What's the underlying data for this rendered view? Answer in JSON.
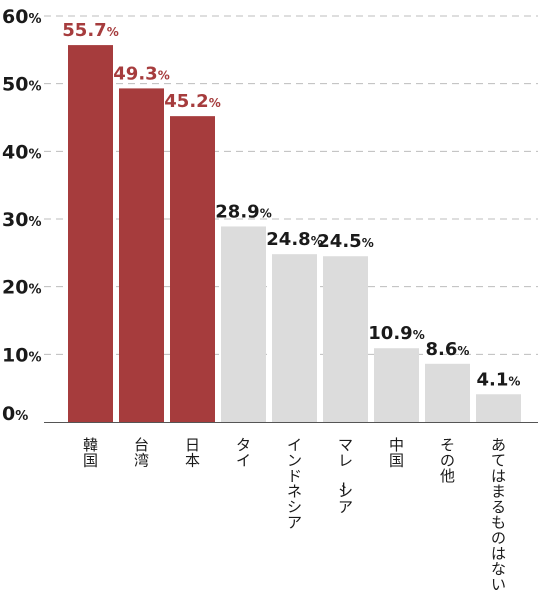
{
  "chart_data": {
    "type": "bar",
    "title": "",
    "xlabel": "",
    "ylabel": "",
    "ylim": [
      0,
      60
    ],
    "yticks": [
      {
        "num": "0",
        "unit": "%"
      },
      {
        "num": "10",
        "unit": "%"
      },
      {
        "num": "20",
        "unit": "%"
      },
      {
        "num": "30",
        "unit": "%"
      },
      {
        "num": "40",
        "unit": "%"
      },
      {
        "num": "50",
        "unit": "%"
      },
      {
        "num": "60",
        "unit": "%"
      }
    ],
    "grid": true,
    "categories": [
      "韓国",
      "台湾",
      "日本",
      "タイ",
      "インドネシア",
      "マレーシア",
      "中国",
      "その他",
      "あてはまるものはない"
    ],
    "values": [
      55.7,
      49.3,
      45.2,
      28.9,
      24.8,
      24.5,
      10.9,
      8.6,
      4.1
    ],
    "value_labels": [
      {
        "num": "55.7",
        "unit": "%"
      },
      {
        "num": "49.3",
        "unit": "%"
      },
      {
        "num": "45.2",
        "unit": "%"
      },
      {
        "num": "28.9",
        "unit": "%"
      },
      {
        "num": "24.8",
        "unit": "%"
      },
      {
        "num": "24.5",
        "unit": "%"
      },
      {
        "num": "10.9",
        "unit": "%"
      },
      {
        "num": "8.6",
        "unit": "%"
      },
      {
        "num": "4.1",
        "unit": "%"
      }
    ],
    "highlighted": [
      true,
      true,
      true,
      false,
      false,
      false,
      false,
      false,
      false
    ],
    "colors": {
      "highlight": "#a63c3d",
      "normal": "#dcdcdc",
      "highlight_label": "#a63c3d",
      "normal_label": "#1a1a1a",
      "grid": "#bdbdbd",
      "axis": "#555555"
    }
  }
}
